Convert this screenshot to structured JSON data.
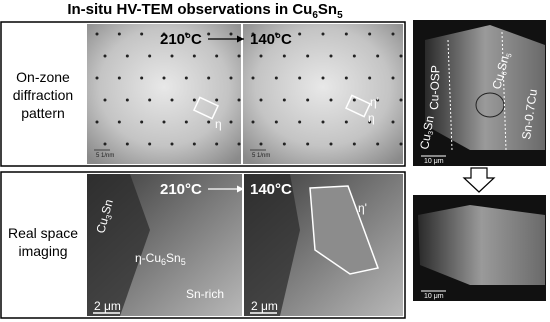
{
  "title": [
    "In-situ HV-TEM observations in Cu",
    "6",
    "Sn",
    "5"
  ],
  "diffraction": {
    "label": [
      "On-zone",
      "diffraction",
      "pattern"
    ],
    "temp_from": "210°C",
    "temp_to": "140°C",
    "scale_bar_left": "5 1/nm",
    "scale_bar_right": "5 1/nm",
    "spot_left": "η",
    "spot_right_top": "η'",
    "spot_right_bottom": "η"
  },
  "imaging": {
    "label": [
      "Real space",
      "imaging"
    ],
    "temp_from": "210°C",
    "temp_to": "140°C",
    "cu3sn": [
      "Cu",
      "3",
      "Sn"
    ],
    "phase": [
      "η-Cu",
      "6",
      "Sn",
      "5"
    ],
    "sn_rich": "Sn-rich",
    "eta_prime": "η'",
    "scale_bar_left": "2 μm",
    "scale_bar_right": "2 μm"
  },
  "sem": {
    "cu_osp": "Cu-OSP",
    "cu6sn5": [
      "Cu",
      "6",
      "Sn",
      "5"
    ],
    "cu3sn": [
      "Cu",
      "3",
      "Sn"
    ],
    "sn07cu": "Sn-0.7Cu",
    "scale_bar_top": "10 μm",
    "scale_bar_bottom": "10 μm"
  }
}
